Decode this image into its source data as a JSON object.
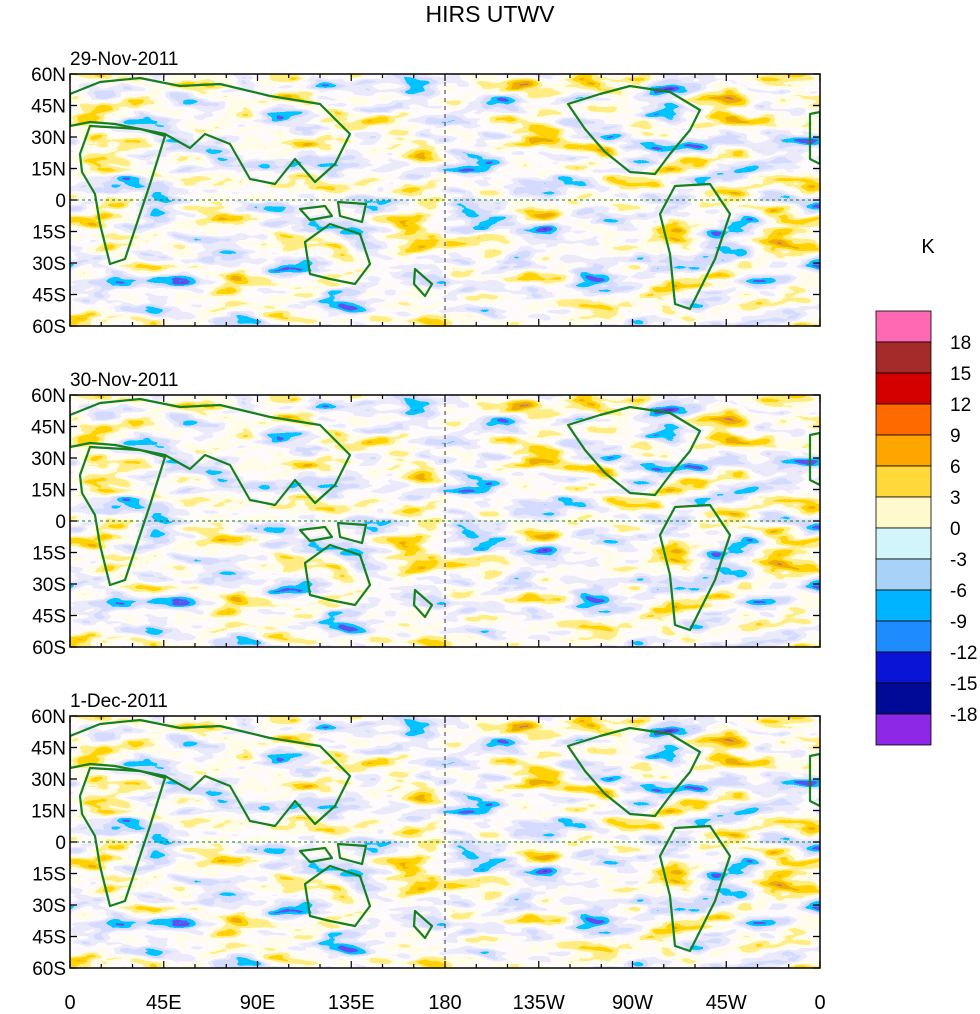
{
  "title": "HIRS UTWV",
  "panels": [
    {
      "date": "29-Nov-2011"
    },
    {
      "date": "30-Nov-2011"
    },
    {
      "date": "1-Dec-2011"
    }
  ],
  "lat_labels": [
    "60N",
    "45N",
    "30N",
    "15N",
    "0",
    "15S",
    "30S",
    "45S",
    "60S"
  ],
  "lon_labels": [
    "0",
    "45E",
    "90E",
    "135E",
    "180",
    "135W",
    "90W",
    "45W",
    "0"
  ],
  "colorbar": {
    "unit": "K",
    "levels": [
      "18",
      "15",
      "12",
      "9",
      "6",
      "3",
      "0",
      "-3",
      "-6",
      "-9",
      "-12",
      "-15",
      "-18"
    ],
    "colors": [
      "#ff69b4",
      "#a52a2a",
      "#d40000",
      "#ff6a00",
      "#ffa500",
      "#ffd83a",
      "#fffacd",
      "#d2f4fb",
      "#a8d2f7",
      "#00b4ff",
      "#1e8cff",
      "#0a14d6",
      "#000a96",
      "#8c28e6"
    ]
  },
  "map_colors": {
    "land_outline": "#15801e",
    "zero_line": "#15801e",
    "date_line": "#333333"
  }
}
